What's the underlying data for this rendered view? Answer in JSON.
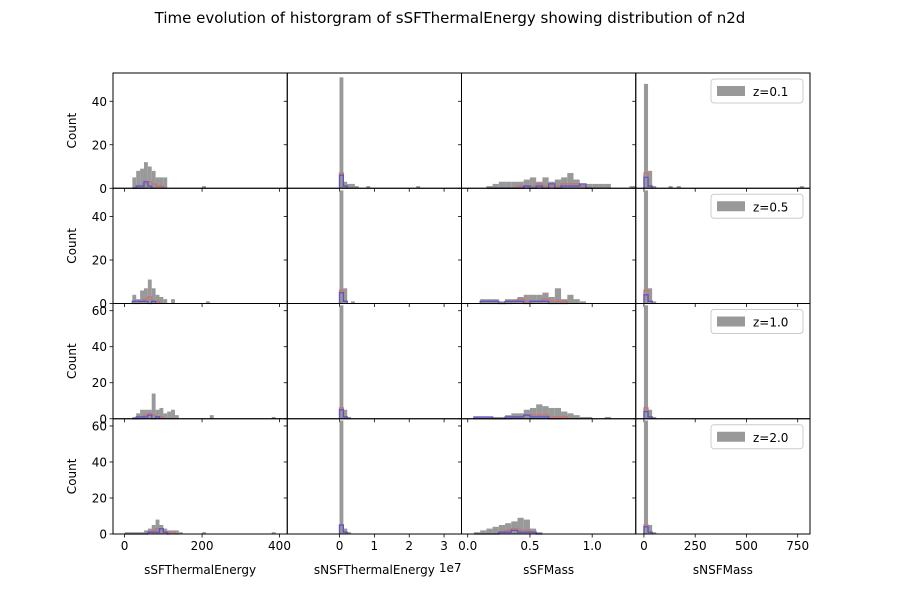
{
  "title": "Time evolution of historgram of sSFThermalEnergy showing distribution of n2d",
  "colors": {
    "gray": "#999999",
    "red": "#d46a6a",
    "blue": "#4c4cd4"
  },
  "chart_data": {
    "type": "bar",
    "grid": false,
    "legend_placement": "upper right of last column",
    "rows": [
      {
        "legend": "z=0.1",
        "ylabel": "Count",
        "ylim": [
          0,
          53
        ],
        "yticks": [
          0,
          20,
          40
        ]
      },
      {
        "legend": "z=0.5",
        "ylabel": "Count",
        "ylim": [
          0,
          53
        ],
        "yticks": [
          0,
          20,
          40
        ]
      },
      {
        "legend": "z=1.0",
        "ylabel": "Count",
        "ylim": [
          0,
          64
        ],
        "yticks": [
          0,
          20,
          40,
          60
        ]
      },
      {
        "legend": "z=2.0",
        "ylabel": "Count",
        "ylim": [
          0,
          64
        ],
        "yticks": [
          0,
          20,
          40,
          60
        ]
      }
    ],
    "columns": [
      {
        "xlabel": "sSFThermalEnergy",
        "xlim": [
          -30,
          420
        ],
        "xticks": [
          0,
          200,
          400
        ],
        "xticklabels": [
          "0",
          "200",
          "400"
        ],
        "offset_label": ""
      },
      {
        "xlabel": "sNSFThermalEnergy",
        "xlim": [
          -15000000,
          35000000
        ],
        "xticks": [
          0,
          10000000,
          20000000,
          30000000
        ],
        "xticklabels": [
          "0",
          "1",
          "2",
          "3"
        ],
        "offset_label": "1e7"
      },
      {
        "xlabel": "sSFMass",
        "xlim": [
          -0.05,
          1.35
        ],
        "xticks": [
          0,
          0.5,
          1.0
        ],
        "xticklabels": [
          "0.0",
          "0.5",
          "1.0"
        ],
        "offset_label": ""
      },
      {
        "xlabel": "sNSFMass",
        "xlim": [
          -40,
          810
        ],
        "xticks": [
          0,
          250,
          500,
          750
        ],
        "xticklabels": [
          "0",
          "250",
          "500",
          "750"
        ],
        "offset_label": ""
      }
    ],
    "panels": [
      [
        {
          "bin_start": 20,
          "bin_width": 10,
          "gray": [
            5,
            8,
            9,
            12,
            10,
            8,
            5,
            5,
            5,
            0,
            0,
            0,
            0,
            0,
            0,
            0,
            0,
            0,
            1
          ],
          "red": [
            0,
            0,
            0,
            2,
            3,
            2,
            1,
            1
          ],
          "blue": [
            0,
            1,
            1,
            3,
            1
          ]
        },
        {
          "bin_start": 0,
          "bin_width": 1100000,
          "gray": [
            51,
            3,
            2,
            2,
            1,
            0,
            0,
            1,
            0,
            0,
            0,
            0,
            0,
            0,
            0,
            0,
            0,
            0,
            0,
            0,
            1,
            0,
            0,
            0,
            0,
            0,
            0,
            0,
            0,
            0,
            0,
            0,
            0,
            0,
            0,
            0,
            0,
            0,
            0,
            0,
            1
          ],
          "red": [
            7,
            1
          ],
          "blue": [
            6,
            1
          ]
        },
        {
          "bin_start": 0.15,
          "bin_width": 0.05,
          "gray": [
            1,
            2,
            3,
            3,
            3,
            3,
            4,
            5,
            3,
            5,
            3,
            4,
            5,
            7,
            4,
            2,
            2,
            2,
            2,
            2,
            0,
            0,
            0,
            1
          ],
          "red": [
            0,
            0,
            0,
            0,
            0,
            1,
            1,
            1,
            2,
            1,
            1,
            1,
            2,
            2,
            2,
            1,
            0
          ],
          "blue": [
            0,
            0,
            0,
            0,
            0,
            0,
            1,
            0,
            1,
            0,
            2,
            0,
            1,
            1,
            1,
            2,
            0
          ]
        },
        {
          "bin_start": 0,
          "bin_width": 20,
          "gray": [
            48,
            8,
            1,
            0,
            0,
            0,
            1,
            0,
            1,
            0,
            0,
            0,
            0,
            0,
            0,
            0,
            0,
            0,
            0,
            0,
            0,
            0,
            0,
            0,
            0,
            0,
            0,
            0,
            0,
            0,
            0,
            0,
            0,
            0,
            0,
            0,
            0,
            0,
            1
          ],
          "red": [
            7,
            1
          ],
          "blue": [
            5,
            1
          ]
        }
      ],
      [
        {
          "bin_start": 20,
          "bin_width": 10,
          "gray": [
            4,
            2,
            6,
            7,
            11,
            7,
            4,
            3,
            2,
            0,
            2,
            0,
            0,
            0,
            0,
            0,
            0,
            0,
            0,
            1
          ],
          "red": [
            0,
            0,
            1,
            2,
            3,
            1,
            1
          ],
          "blue": [
            1,
            1,
            1,
            1,
            0,
            1
          ]
        },
        {
          "bin_start": 0,
          "bin_width": 1100000,
          "gray": [
            52,
            7,
            0,
            1
          ],
          "red": [
            6,
            1
          ],
          "blue": [
            5,
            1
          ]
        },
        {
          "bin_start": 0.1,
          "bin_width": 0.05,
          "gray": [
            2,
            2,
            2,
            1,
            2,
            2,
            3,
            4,
            4,
            4,
            5,
            3,
            7,
            2,
            4,
            2,
            1
          ],
          "red": [
            0,
            0,
            0,
            0,
            0,
            1,
            2,
            1,
            1,
            1,
            2,
            1,
            1,
            1
          ],
          "blue": [
            1,
            1,
            1,
            0,
            1,
            1,
            1,
            0,
            1,
            1,
            1,
            0,
            0,
            0
          ]
        },
        {
          "bin_start": 0,
          "bin_width": 20,
          "gray": [
            52,
            7,
            1
          ],
          "red": [
            6,
            1
          ],
          "blue": [
            4,
            1
          ]
        }
      ],
      [
        {
          "bin_start": 20,
          "bin_width": 10,
          "gray": [
            1,
            3,
            5,
            5,
            5,
            14,
            5,
            6,
            3,
            4,
            5,
            2,
            0,
            0,
            0,
            0,
            0,
            0,
            0,
            0,
            2,
            0,
            0,
            0,
            0,
            0,
            0,
            0,
            0,
            0,
            0,
            0,
            0,
            0,
            0,
            0,
            1
          ],
          "red": [
            0,
            0,
            0,
            2,
            3,
            2,
            1,
            1
          ],
          "blue": [
            0,
            1,
            1,
            1,
            2,
            0,
            1
          ]
        },
        {
          "bin_start": 0,
          "bin_width": 1100000,
          "gray": [
            63,
            5,
            1
          ],
          "red": [
            6,
            1
          ],
          "blue": [
            5,
            1
          ]
        },
        {
          "bin_start": 0.05,
          "bin_width": 0.05,
          "gray": [
            1,
            1,
            1,
            1,
            1,
            2,
            3,
            3,
            5,
            6,
            8,
            7,
            6,
            6,
            4,
            3,
            2,
            1,
            1,
            0,
            0,
            1
          ],
          "red": [
            0,
            0,
            0,
            0,
            0,
            0,
            1,
            1,
            2,
            2,
            2,
            2,
            1,
            1,
            1
          ],
          "blue": [
            1,
            1,
            1,
            0,
            0,
            1,
            1,
            1,
            2,
            1,
            1,
            1,
            0,
            0
          ]
        },
        {
          "bin_start": 0,
          "bin_width": 20,
          "gray": [
            63,
            5,
            1
          ],
          "red": [
            6,
            1
          ],
          "blue": [
            4,
            1
          ]
        }
      ],
      [
        {
          "bin_start": 0,
          "bin_width": 10,
          "gray": [
            1,
            1,
            1,
            1,
            1,
            2,
            3,
            5,
            8,
            5,
            3,
            2,
            2,
            2,
            1,
            0,
            0,
            0,
            0,
            0,
            1,
            0,
            0,
            0,
            0,
            0,
            0,
            0,
            0,
            0,
            0,
            0,
            0,
            0,
            0,
            0,
            0,
            0,
            1
          ],
          "red": [
            0,
            0,
            0,
            0,
            0,
            0,
            1,
            2,
            3,
            2,
            1,
            1,
            1,
            0
          ],
          "blue": [
            0,
            0,
            0,
            0,
            0,
            0,
            1,
            1,
            1,
            3,
            1,
            0
          ]
        },
        {
          "bin_start": 0,
          "bin_width": 1100000,
          "gray": [
            63,
            3,
            1
          ],
          "red": [
            5,
            1
          ],
          "blue": [
            5,
            1
          ]
        },
        {
          "bin_start": 0.05,
          "bin_width": 0.05,
          "gray": [
            1,
            2,
            3,
            4,
            5,
            6,
            7,
            9,
            8,
            3,
            1,
            0,
            0
          ],
          "red": [
            0,
            0,
            0,
            0,
            1,
            2,
            3,
            2,
            2,
            1,
            0
          ],
          "blue": [
            0,
            0,
            0,
            0,
            1,
            1,
            2,
            1,
            1,
            1,
            0
          ]
        },
        {
          "bin_start": 0,
          "bin_width": 20,
          "gray": [
            63,
            5,
            1
          ],
          "red": [
            5,
            1
          ],
          "blue": [
            4,
            1
          ]
        }
      ]
    ]
  }
}
